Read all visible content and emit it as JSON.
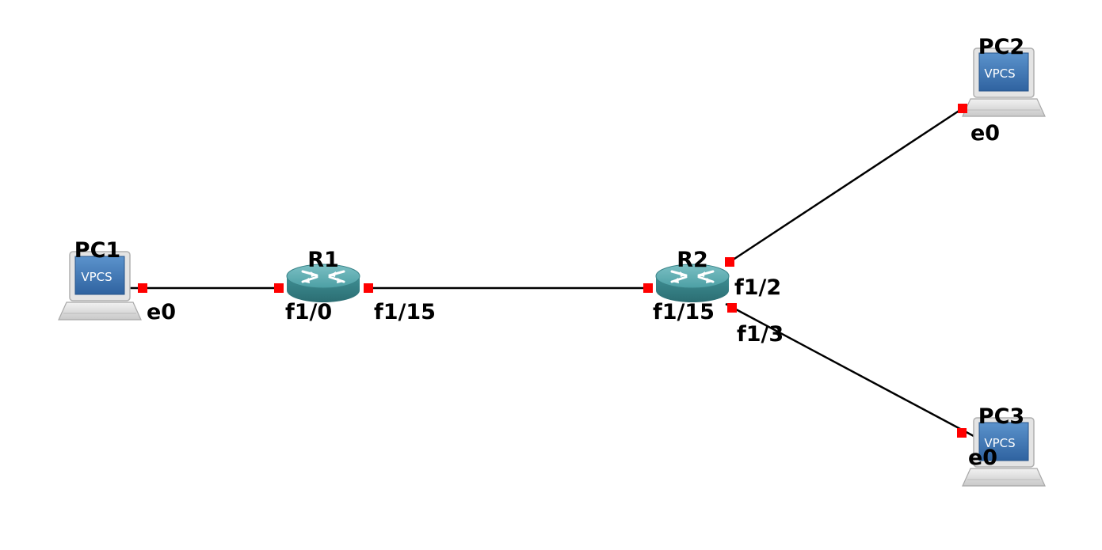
{
  "topology": {
    "nodes": {
      "pc1": {
        "label": "PC1",
        "screen_text": "VPCS",
        "icon": "vpcs-computer-icon"
      },
      "pc2": {
        "label": "PC2",
        "screen_text": "VPCS",
        "icon": "vpcs-computer-icon"
      },
      "pc3": {
        "label": "PC3",
        "screen_text": "VPCS",
        "icon": "vpcs-computer-icon"
      },
      "r1": {
        "label": "R1",
        "icon": "router-icon"
      },
      "r2": {
        "label": "R2",
        "icon": "router-icon"
      }
    },
    "links": [
      {
        "from": "PC1",
        "from_port": "e0",
        "to": "R1",
        "to_port": "f1/0"
      },
      {
        "from": "R1",
        "from_port": "f1/15",
        "to": "R2",
        "to_port": "f1/15"
      },
      {
        "from": "R2",
        "from_port": "f1/2",
        "to": "PC2",
        "to_port": "e0"
      },
      {
        "from": "R2",
        "from_port": "f1/3",
        "to": "PC3",
        "to_port": "e0"
      }
    ],
    "ports": {
      "pc1_e0": "e0",
      "r1_f1_0": "f1/0",
      "r1_f1_15": "f1/15",
      "r2_f1_15": "f1/15",
      "r2_f1_2": "f1/2",
      "r2_f1_3": "f1/3",
      "pc2_e0": "e0",
      "pc3_e0": "e0"
    },
    "colors": {
      "link": "#000000",
      "port_marker": "#ff0000",
      "router_body": "#3f8f94",
      "vpcs_screen": "#3f78b4"
    }
  }
}
